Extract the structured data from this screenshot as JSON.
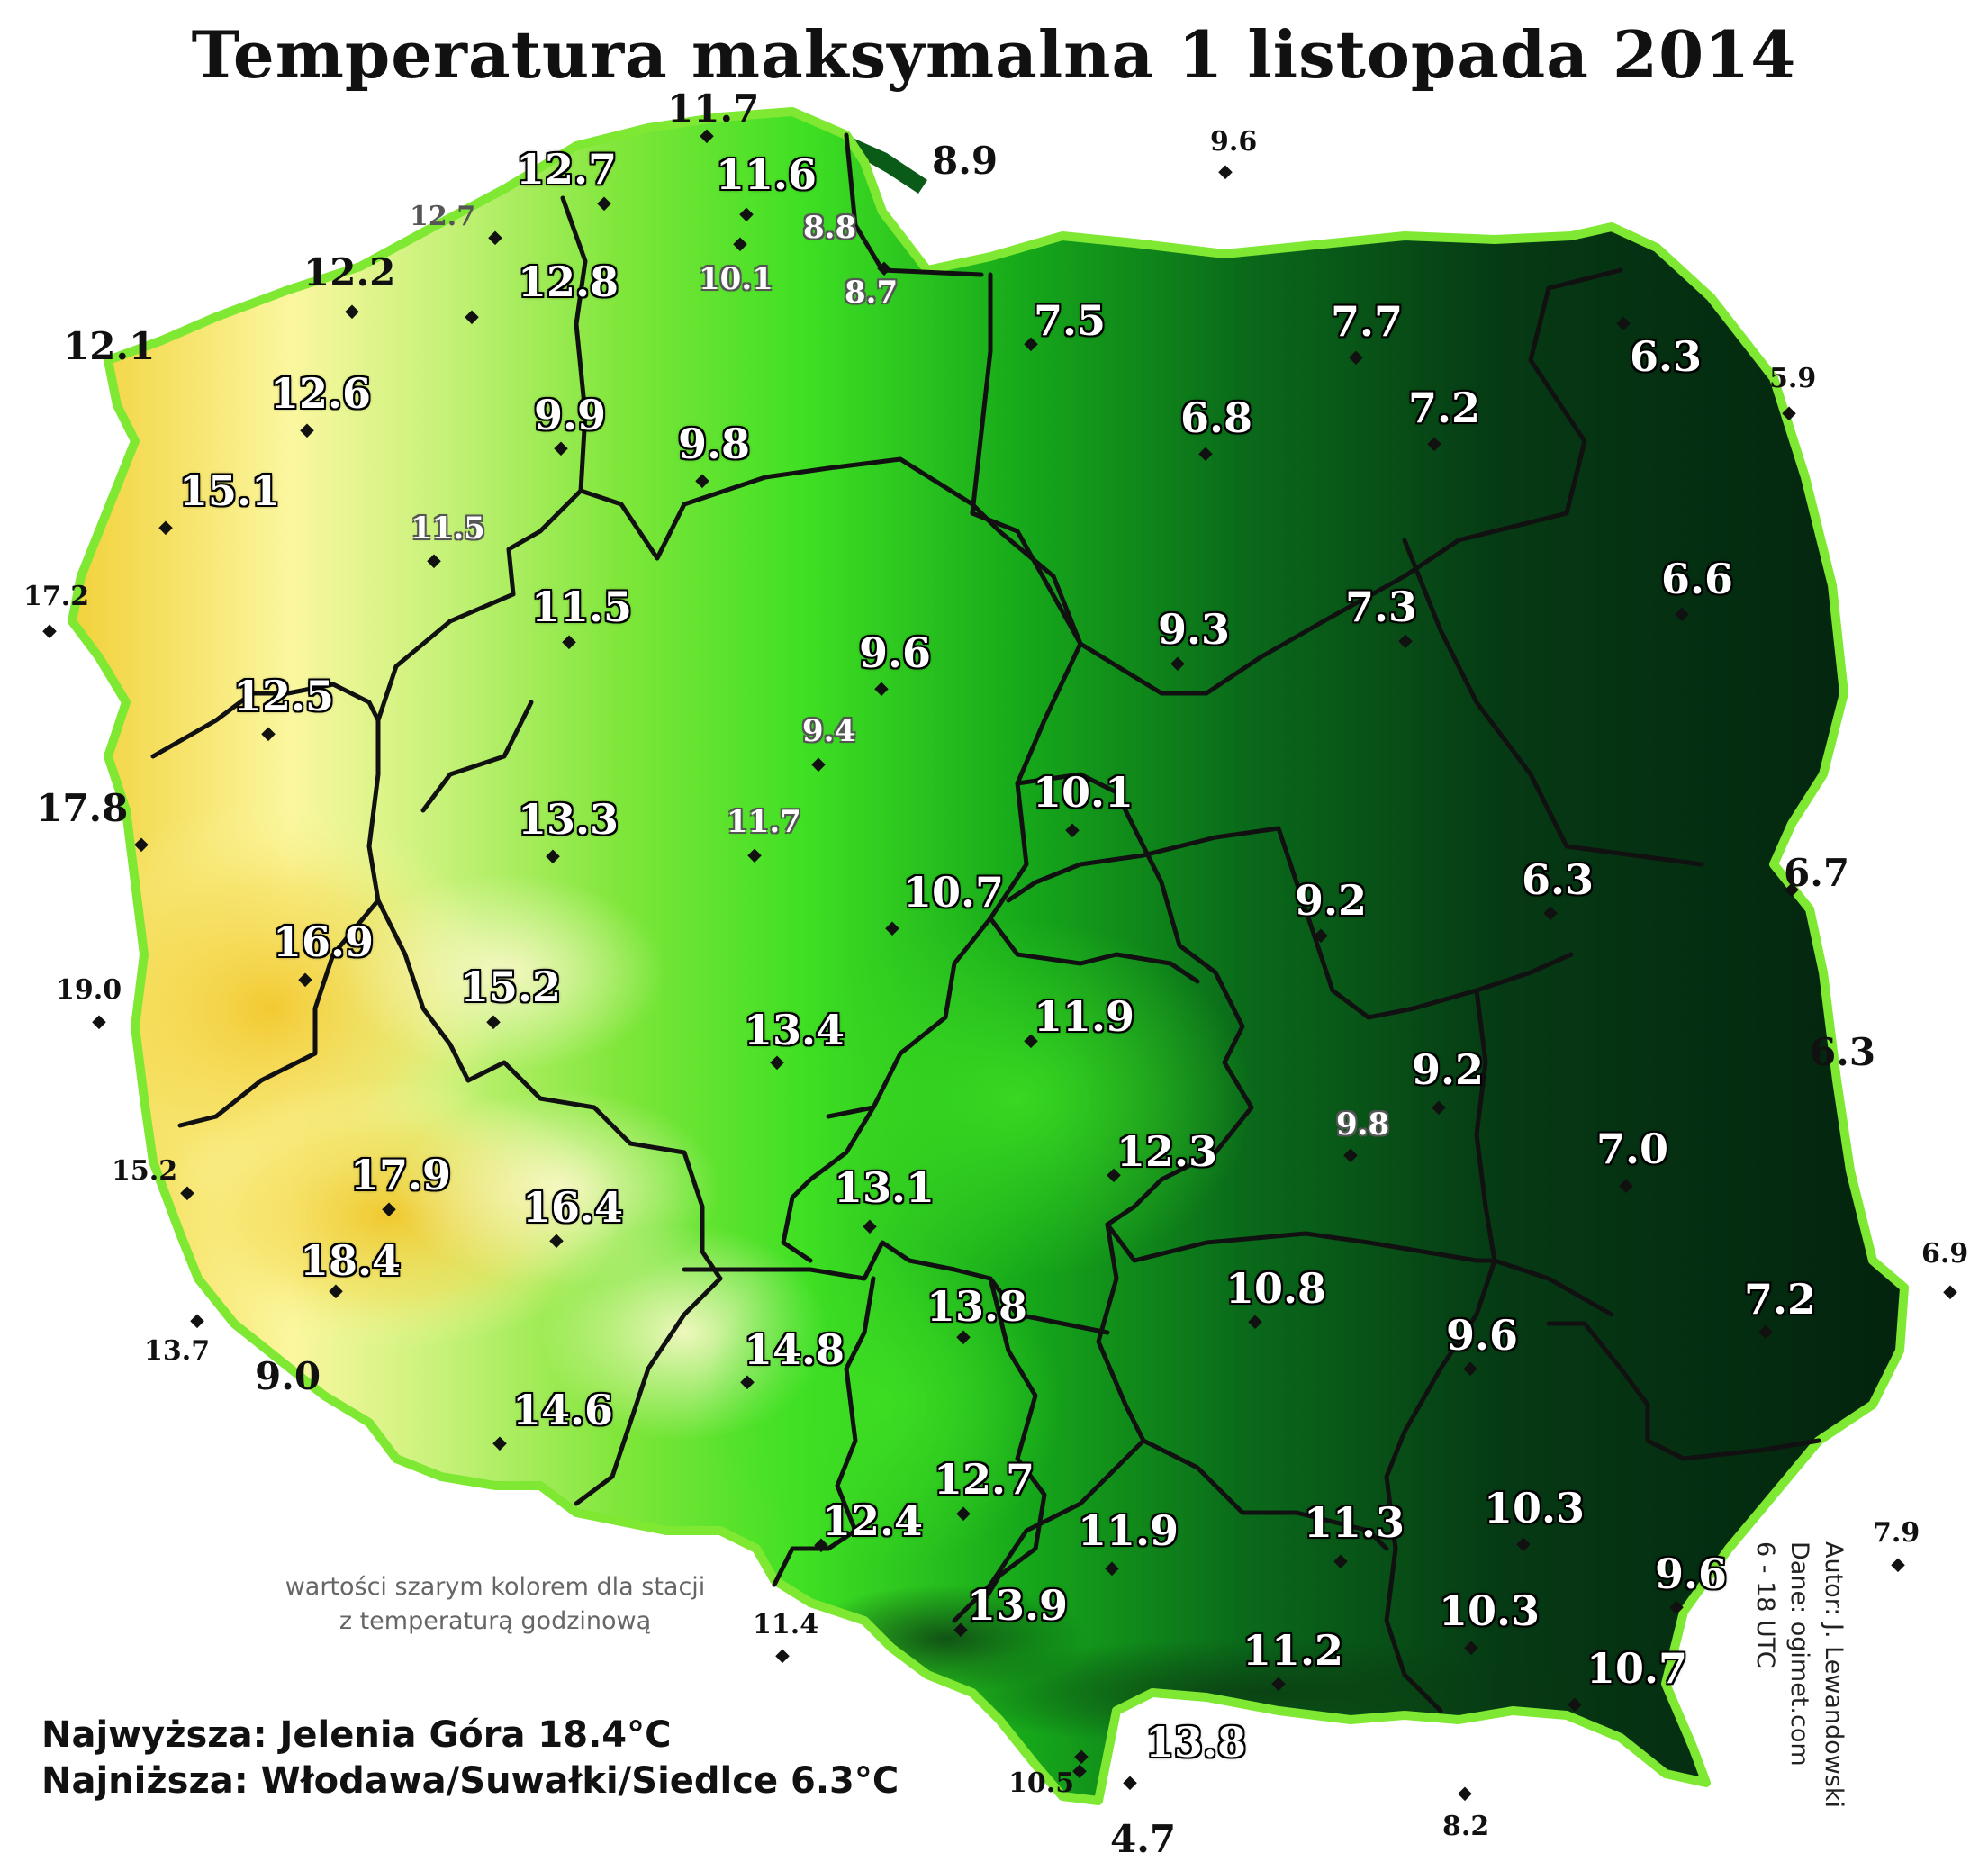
{
  "title": "Temperatura maksymalna 1 listopada 2014",
  "note_lines": [
    "wartości szarym kolorem dla stacji",
    "z temperaturą godzinową"
  ],
  "stats": {
    "max": "Najwyższa: Jelenia Góra 18.4°C",
    "min": "Najniższa: Włodawa/Suwałki/Siedlce 6.3°C"
  },
  "credits": {
    "author": "Autor: J. Lewandowski",
    "data": "Dane: ogimet.com",
    "hours": "6 - 18 UTC"
  },
  "colors": {
    "warmest": "#f2d23c",
    "warm": "#fbf7a0",
    "mild": "#c8f27a",
    "bright_green": "#3fe023",
    "green": "#16a81a",
    "dark_green": "#0a6a1a",
    "coldest": "#03230e",
    "border": "#111111"
  },
  "stations": [
    {
      "v": "11.7",
      "s": "out"
    },
    {
      "v": "12.7",
      "s": "in"
    },
    {
      "v": "11.6",
      "s": "in"
    },
    {
      "v": "8.9",
      "s": "out"
    },
    {
      "v": "9.6",
      "s": "out-sm"
    },
    {
      "v": "12.7",
      "s": "out-sm-gray"
    },
    {
      "v": "8.8",
      "s": "in-sm"
    },
    {
      "v": "12.2",
      "s": "out"
    },
    {
      "v": "12.8",
      "s": "in"
    },
    {
      "v": "10.1",
      "s": "in-sm"
    },
    {
      "v": "8.7",
      "s": "in-sm"
    },
    {
      "v": "12.1",
      "s": "out"
    },
    {
      "v": "7.5",
      "s": "in"
    },
    {
      "v": "7.7",
      "s": "in"
    },
    {
      "v": "6.3",
      "s": "in"
    },
    {
      "v": "12.6",
      "s": "in"
    },
    {
      "v": "9.9",
      "s": "in"
    },
    {
      "v": "6.8",
      "s": "in"
    },
    {
      "v": "7.2",
      "s": "in"
    },
    {
      "v": "5.9",
      "s": "out-sm"
    },
    {
      "v": "9.8",
      "s": "in"
    },
    {
      "v": "15.1",
      "s": "in"
    },
    {
      "v": "11.5",
      "s": "in-sm"
    },
    {
      "v": "6.6",
      "s": "in"
    },
    {
      "v": "17.2",
      "s": "out-sm"
    },
    {
      "v": "11.5",
      "s": "in"
    },
    {
      "v": "7.3",
      "s": "in"
    },
    {
      "v": "9.3",
      "s": "in"
    },
    {
      "v": "9.6",
      "s": "in"
    },
    {
      "v": "12.5",
      "s": "in"
    },
    {
      "v": "9.4",
      "s": "in-sm"
    },
    {
      "v": "10.1",
      "s": "in"
    },
    {
      "v": "17.8",
      "s": "out"
    },
    {
      "v": "13.3",
      "s": "in"
    },
    {
      "v": "11.7",
      "s": "in-sm"
    },
    {
      "v": "6.7",
      "s": "out"
    },
    {
      "v": "10.7",
      "s": "in"
    },
    {
      "v": "6.3",
      "s": "in"
    },
    {
      "v": "9.2",
      "s": "in"
    },
    {
      "v": "16.9",
      "s": "in"
    },
    {
      "v": "15.2",
      "s": "in"
    },
    {
      "v": "19.0",
      "s": "out-sm"
    },
    {
      "v": "11.9",
      "s": "in"
    },
    {
      "v": "13.4",
      "s": "in"
    },
    {
      "v": "6.3",
      "s": "out"
    },
    {
      "v": "9.2",
      "s": "in"
    },
    {
      "v": "9.8",
      "s": "in-sm"
    },
    {
      "v": "7.0",
      "s": "in"
    },
    {
      "v": "12.3",
      "s": "in"
    },
    {
      "v": "17.9",
      "s": "in"
    },
    {
      "v": "15.2",
      "s": "out-sm"
    },
    {
      "v": "13.1",
      "s": "in"
    },
    {
      "v": "16.4",
      "s": "in"
    },
    {
      "v": "18.4",
      "s": "in"
    },
    {
      "v": "6.9",
      "s": "out-sm"
    },
    {
      "v": "10.8",
      "s": "in"
    },
    {
      "v": "7.2",
      "s": "in"
    },
    {
      "v": "13.8",
      "s": "in"
    },
    {
      "v": "9.6",
      "s": "in"
    },
    {
      "v": "13.7",
      "s": "out-sm"
    },
    {
      "v": "9.0",
      "s": "out"
    },
    {
      "v": "14.8",
      "s": "in"
    },
    {
      "v": "14.6",
      "s": "in"
    },
    {
      "v": "12.7",
      "s": "in"
    },
    {
      "v": "10.3",
      "s": "in"
    },
    {
      "v": "12.4",
      "s": "in"
    },
    {
      "v": "11.9",
      "s": "in"
    },
    {
      "v": "11.3",
      "s": "in"
    },
    {
      "v": "7.9",
      "s": "out-sm"
    },
    {
      "v": "9.6",
      "s": "in"
    },
    {
      "v": "13.9",
      "s": "in"
    },
    {
      "v": "10.3",
      "s": "in"
    },
    {
      "v": "11.4",
      "s": "out-sm"
    },
    {
      "v": "11.2",
      "s": "in"
    },
    {
      "v": "10.7",
      "s": "in"
    },
    {
      "v": "13.8",
      "s": "in"
    },
    {
      "v": "10.5",
      "s": "out-sm"
    },
    {
      "v": "8.2",
      "s": "out-sm"
    },
    {
      "v": "4.7",
      "s": "out"
    }
  ]
}
